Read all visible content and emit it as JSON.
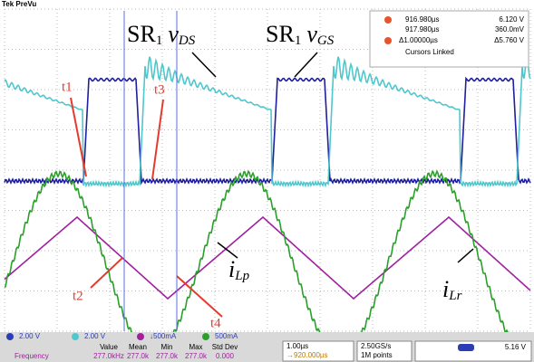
{
  "header": {
    "title": "Tek PreVu"
  },
  "cursors": {
    "a_time": "916.980µs",
    "a_value": "6.120 V",
    "b_time": "917.980µs",
    "b_value": "360.0mV",
    "delta_time": "Δ1.00000µs",
    "delta_value": "Δ5.760 V",
    "mode": "Cursors Linked"
  },
  "annotations": {
    "vds": {
      "base": "SR",
      "sub1": "1",
      "v": "v",
      "sub2": "DS"
    },
    "vgs": {
      "base": "SR",
      "sub1": "1",
      "v": "v",
      "sub2": "GS"
    },
    "t1": "t1",
    "t2": "t2",
    "t3": "t3",
    "t4": "t4",
    "ilp": {
      "v": "i",
      "sub": "Lp"
    },
    "ilr": {
      "v": "i",
      "sub": "Lr"
    }
  },
  "channels": [
    "2.00 V",
    "2.00 V",
    "↓500mA",
    "500mA"
  ],
  "measurements": {
    "columns": [
      "Value",
      "Mean",
      "Min",
      "Max",
      "Std Dev"
    ],
    "row": [
      "Frequency",
      "277.0kHz",
      "277.0k",
      "277.0k",
      "277.0k",
      "0.000"
    ]
  },
  "timebase": {
    "scale": "1.00µs",
    "position": "→920.000µs"
  },
  "acquisition": {
    "rate": "2.50GS/s",
    "points": "1M points"
  },
  "trigger": {
    "level": "5.16 V"
  }
}
